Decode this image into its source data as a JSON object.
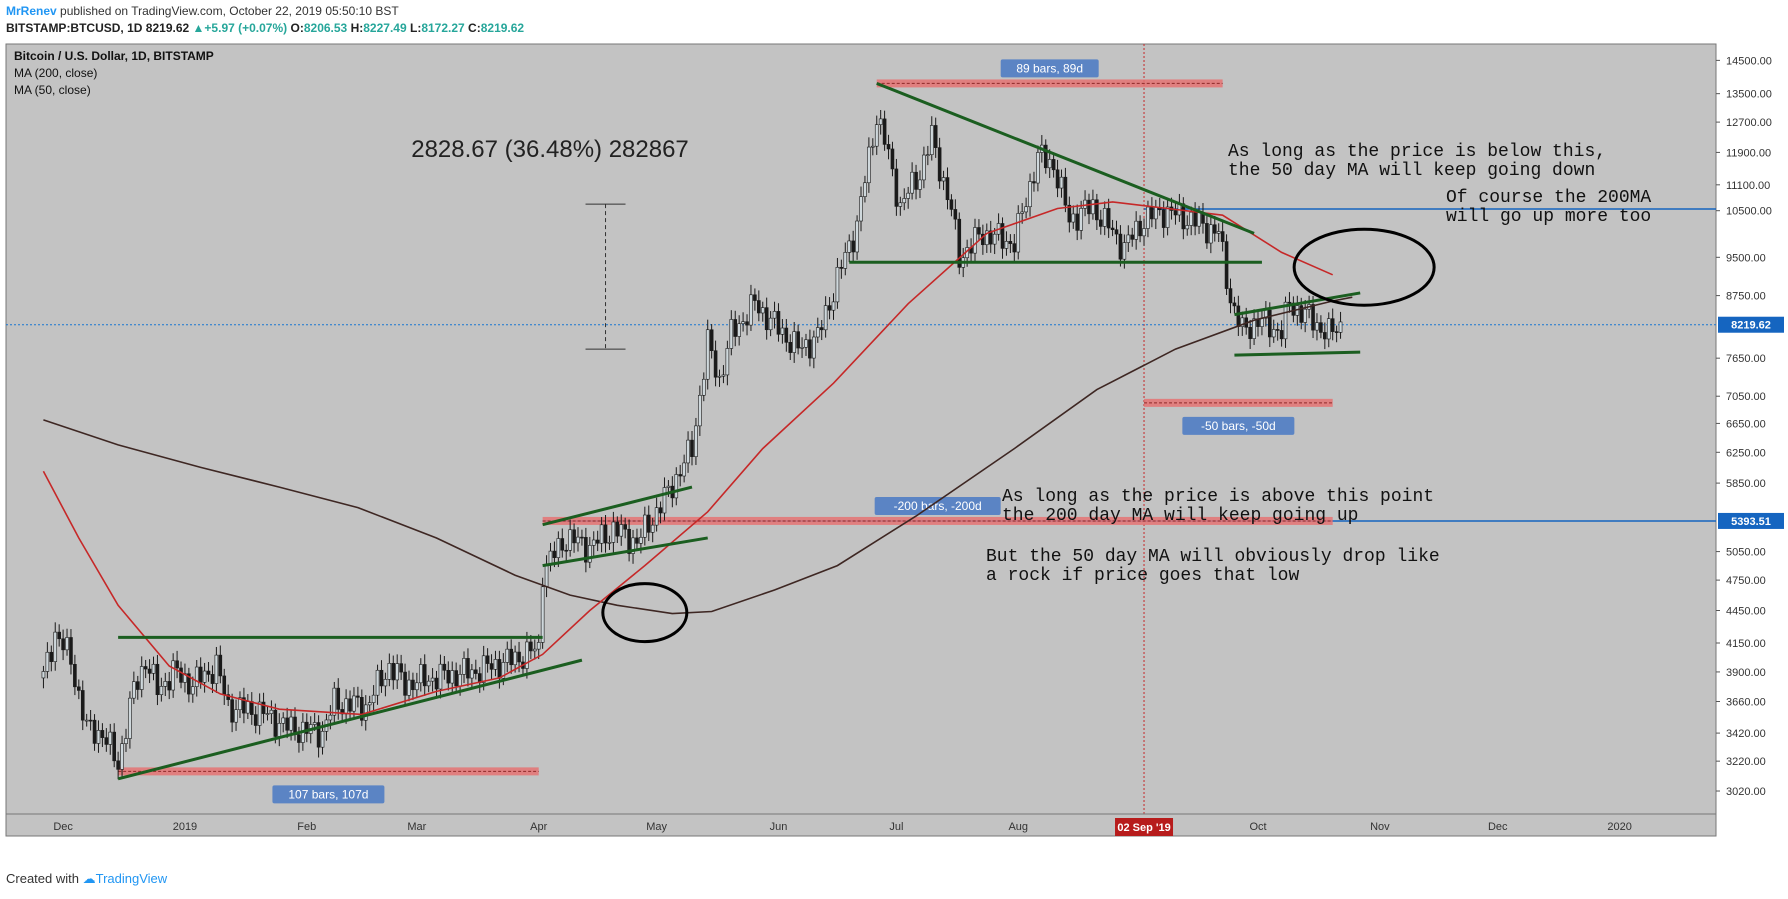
{
  "header": {
    "author": "MrRenev",
    "published_text": "published on TradingView.com, October 22, 2019 05:50:10 BST",
    "symbol": "BITSTAMP:BTCUSD, 1D",
    "last": "8219.62",
    "change_arrow": "▲",
    "change": "+5.97 (+0.07%)",
    "o_label": "O:",
    "o": "8206.53",
    "h_label": "H:",
    "h": "8227.49",
    "l_label": "L:",
    "l": "8172.27",
    "c_label": "C:",
    "c": "8219.62"
  },
  "legend": {
    "title": "Bitcoin / U.S. Dollar, 1D, BITSTAMP",
    "ma200": "MA (200, close)",
    "ma50": "MA (50, close)"
  },
  "footer": {
    "created_with": "Created with",
    "brand": "TradingView"
  },
  "colors": {
    "background": "#c3c3c3",
    "ma50": "#c62828",
    "ma200": "#3e2723",
    "trendline": "#1b5e20",
    "hline": "#1565c0",
    "range_box": "#e57373",
    "range_label_bg": "#5b84c4",
    "candle": "#1a1a1a",
    "candle_up": "#37474f"
  },
  "chart_data": {
    "type": "candlestick",
    "y_axis_labels": [
      "14500.00",
      "13500.00",
      "12700.00",
      "11900.00",
      "11100.00",
      "10500.00",
      "9500.00",
      "8750.00",
      "8219.62",
      "7650.00",
      "7050.00",
      "6650.00",
      "6250.00",
      "5850.00",
      "5393.51",
      "5050.00",
      "4750.00",
      "4450.00",
      "4150.00",
      "3900.00",
      "3660.00",
      "3420.00",
      "3220.00",
      "3020.00"
    ],
    "x_axis_labels": [
      "Dec",
      "2019",
      "Feb",
      "Mar",
      "Apr",
      "May",
      "Jun",
      "Jul",
      "Aug",
      "02 Sep '19",
      "Oct",
      "Nov",
      "Dec",
      "2020"
    ],
    "ylim": [
      2850,
      14700
    ],
    "log_scale": true,
    "grid": false,
    "price_tags": [
      {
        "value": "10537.87",
        "color": "#1565c0"
      },
      {
        "value": "8219.62",
        "color": "#1565c0"
      },
      {
        "value": "5393.51",
        "color": "#1565c0"
      }
    ],
    "crosshair_date": "02 Sep '19",
    "series": [
      {
        "name": "MA (200, close)",
        "role": "ma200"
      },
      {
        "name": "MA (50, close)",
        "role": "ma50"
      }
    ],
    "close_path": [
      {
        "x": "2018-11-26",
        "y": 3850
      },
      {
        "x": "2018-11-29",
        "y": 4250
      },
      {
        "x": "2018-12-03",
        "y": 4000
      },
      {
        "x": "2018-12-07",
        "y": 3450
      },
      {
        "x": "2018-12-11",
        "y": 3420
      },
      {
        "x": "2018-12-15",
        "y": 3200
      },
      {
        "x": "2018-12-19",
        "y": 3750
      },
      {
        "x": "2018-12-22",
        "y": 4000
      },
      {
        "x": "2018-12-25",
        "y": 3750
      },
      {
        "x": "2018-12-29",
        "y": 3900
      },
      {
        "x": "2019-01-03",
        "y": 3800
      },
      {
        "x": "2019-01-09",
        "y": 3950
      },
      {
        "x": "2019-01-12",
        "y": 3620
      },
      {
        "x": "2019-01-20",
        "y": 3580
      },
      {
        "x": "2019-01-28",
        "y": 3450
      },
      {
        "x": "2019-02-05",
        "y": 3430
      },
      {
        "x": "2019-02-08",
        "y": 3650
      },
      {
        "x": "2019-02-16",
        "y": 3620
      },
      {
        "x": "2019-02-22",
        "y": 3950
      },
      {
        "x": "2019-02-26",
        "y": 3800
      },
      {
        "x": "2019-03-05",
        "y": 3850
      },
      {
        "x": "2019-03-15",
        "y": 3900
      },
      {
        "x": "2019-03-25",
        "y": 4000
      },
      {
        "x": "2019-04-01",
        "y": 4100
      },
      {
        "x": "2019-04-02",
        "y": 4850
      },
      {
        "x": "2019-04-08",
        "y": 5200
      },
      {
        "x": "2019-04-14",
        "y": 5100
      },
      {
        "x": "2019-04-20",
        "y": 5300
      },
      {
        "x": "2019-04-26",
        "y": 5150
      },
      {
        "x": "2019-05-03",
        "y": 5650
      },
      {
        "x": "2019-05-10",
        "y": 6300
      },
      {
        "x": "2019-05-14",
        "y": 7900
      },
      {
        "x": "2019-05-17",
        "y": 7300
      },
      {
        "x": "2019-05-20",
        "y": 8050
      },
      {
        "x": "2019-05-26",
        "y": 8600
      },
      {
        "x": "2019-05-30",
        "y": 8300
      },
      {
        "x": "2019-06-06",
        "y": 7800
      },
      {
        "x": "2019-06-11",
        "y": 8000
      },
      {
        "x": "2019-06-17",
        "y": 9300
      },
      {
        "x": "2019-06-21",
        "y": 10200
      },
      {
        "x": "2019-06-26",
        "y": 12900
      },
      {
        "x": "2019-06-28",
        "y": 12200
      },
      {
        "x": "2019-07-02",
        "y": 10600
      },
      {
        "x": "2019-07-07",
        "y": 11400
      },
      {
        "x": "2019-07-10",
        "y": 12300
      },
      {
        "x": "2019-07-15",
        "y": 10500
      },
      {
        "x": "2019-07-17",
        "y": 9500
      },
      {
        "x": "2019-07-23",
        "y": 10000
      },
      {
        "x": "2019-07-31",
        "y": 9800
      },
      {
        "x": "2019-08-06",
        "y": 11800
      },
      {
        "x": "2019-08-10",
        "y": 11600
      },
      {
        "x": "2019-08-14",
        "y": 10300
      },
      {
        "x": "2019-08-20",
        "y": 10600
      },
      {
        "x": "2019-08-28",
        "y": 9700
      },
      {
        "x": "2019-09-02",
        "y": 10300
      },
      {
        "x": "2019-09-07",
        "y": 10500
      },
      {
        "x": "2019-09-14",
        "y": 10300
      },
      {
        "x": "2019-09-21",
        "y": 10000
      },
      {
        "x": "2019-09-24",
        "y": 8700
      },
      {
        "x": "2019-09-27",
        "y": 8100
      },
      {
        "x": "2019-10-01",
        "y": 8300
      },
      {
        "x": "2019-10-07",
        "y": 8100
      },
      {
        "x": "2019-10-09",
        "y": 8600
      },
      {
        "x": "2019-10-14",
        "y": 8350
      },
      {
        "x": "2019-10-19",
        "y": 8050
      },
      {
        "x": "2019-10-22",
        "y": 8219.62
      }
    ],
    "ma200_path": [
      {
        "x": "2018-11-26",
        "y": 6700
      },
      {
        "x": "2018-12-15",
        "y": 6350
      },
      {
        "x": "2019-01-05",
        "y": 6050
      },
      {
        "x": "2019-01-25",
        "y": 5800
      },
      {
        "x": "2019-02-14",
        "y": 5550
      },
      {
        "x": "2019-03-06",
        "y": 5200
      },
      {
        "x": "2019-03-26",
        "y": 4800
      },
      {
        "x": "2019-04-09",
        "y": 4600
      },
      {
        "x": "2019-04-21",
        "y": 4500
      },
      {
        "x": "2019-05-05",
        "y": 4420
      },
      {
        "x": "2019-05-15",
        "y": 4440
      },
      {
        "x": "2019-05-31",
        "y": 4650
      },
      {
        "x": "2019-06-16",
        "y": 4900
      },
      {
        "x": "2019-07-06",
        "y": 5450
      },
      {
        "x": "2019-07-31",
        "y": 6300
      },
      {
        "x": "2019-08-21",
        "y": 7150
      },
      {
        "x": "2019-09-10",
        "y": 7800
      },
      {
        "x": "2019-09-30",
        "y": 8300
      },
      {
        "x": "2019-10-20",
        "y": 8650
      },
      {
        "x": "2019-10-25",
        "y": 8720
      }
    ],
    "ma50_path": [
      {
        "x": "2018-11-26",
        "y": 6000
      },
      {
        "x": "2018-12-05",
        "y": 5200
      },
      {
        "x": "2018-12-15",
        "y": 4500
      },
      {
        "x": "2018-12-28",
        "y": 3950
      },
      {
        "x": "2019-01-10",
        "y": 3720
      },
      {
        "x": "2019-01-25",
        "y": 3600
      },
      {
        "x": "2019-02-15",
        "y": 3560
      },
      {
        "x": "2019-03-06",
        "y": 3740
      },
      {
        "x": "2019-03-22",
        "y": 3850
      },
      {
        "x": "2019-04-02",
        "y": 4050
      },
      {
        "x": "2019-04-14",
        "y": 4450
      },
      {
        "x": "2019-04-28",
        "y": 4900
      },
      {
        "x": "2019-05-14",
        "y": 5500
      },
      {
        "x": "2019-05-28",
        "y": 6300
      },
      {
        "x": "2019-06-15",
        "y": 7250
      },
      {
        "x": "2019-07-04",
        "y": 8600
      },
      {
        "x": "2019-07-24",
        "y": 10000
      },
      {
        "x": "2019-08-11",
        "y": 10550
      },
      {
        "x": "2019-08-25",
        "y": 10700
      },
      {
        "x": "2019-09-08",
        "y": 10550
      },
      {
        "x": "2019-09-22",
        "y": 10400
      },
      {
        "x": "2019-10-07",
        "y": 9600
      },
      {
        "x": "2019-10-20",
        "y": 9150
      }
    ],
    "trendlines": [
      {
        "x1": "2018-12-15",
        "y1": 4200,
        "x2": "2019-04-02",
        "y2": 4200
      },
      {
        "x1": "2018-12-15",
        "y1": 3100,
        "x2": "2019-04-12",
        "y2": 4000
      },
      {
        "x1": "2019-04-02",
        "y1": 5350,
        "x2": "2019-05-10",
        "y2": 5800
      },
      {
        "x1": "2019-04-02",
        "y1": 4900,
        "x2": "2019-05-14",
        "y2": 5200
      },
      {
        "x1": "2019-06-26",
        "y1": 13800,
        "x2": "2019-09-30",
        "y2": 10000
      },
      {
        "x1": "2019-06-19",
        "y1": 9400,
        "x2": "2019-10-02",
        "y2": 9400
      },
      {
        "x1": "2019-09-25",
        "y1": 8400,
        "x2": "2019-10-27",
        "y2": 8800
      },
      {
        "x1": "2019-09-25",
        "y1": 7700,
        "x2": "2019-10-27",
        "y2": 7750
      }
    ],
    "hlines": [
      {
        "y": 10537.87
      },
      {
        "y": 5393.51
      }
    ],
    "range_boxes": [
      {
        "x1": "2018-12-15",
        "x2": "2019-04-01",
        "y": 3150,
        "label": "107 bars, 107d",
        "label_pos": "below"
      },
      {
        "x1": "2019-04-02",
        "x2": "2019-10-20",
        "y": 5393.51,
        "label": "-200 bars, -200d",
        "label_pos": "above"
      },
      {
        "x1": "2019-06-26",
        "x2": "2019-09-22",
        "y": 13800,
        "label": "89 bars, 89d",
        "label_pos": "above"
      },
      {
        "x1": "2019-09-02",
        "x2": "2019-10-20",
        "y": 6950,
        "label": "-50 bars, -50d",
        "label_pos": "below"
      }
    ],
    "measure": {
      "x": "2019-04-18",
      "y_top": 10650,
      "y_bottom": 7800,
      "label": "2828.67 (36.48%) 282867"
    },
    "circles": [
      {
        "x": "2019-04-28",
        "y": 4430
      },
      {
        "x": "2019-10-28",
        "y": 9300
      }
    ],
    "annotations": [
      {
        "lines": [
          "As long as the price is below this,",
          "the 50 day MA will keep going down"
        ]
      },
      {
        "lines": [
          "Of course the 200MA",
          "will go up more too"
        ]
      },
      {
        "lines": [
          "As long as the price is above this point",
          "the 200 day MA will keep going up"
        ]
      },
      {
        "lines": [
          "But the 50 day MA will obviously drop like",
          "a rock if price goes that low"
        ]
      }
    ]
  }
}
